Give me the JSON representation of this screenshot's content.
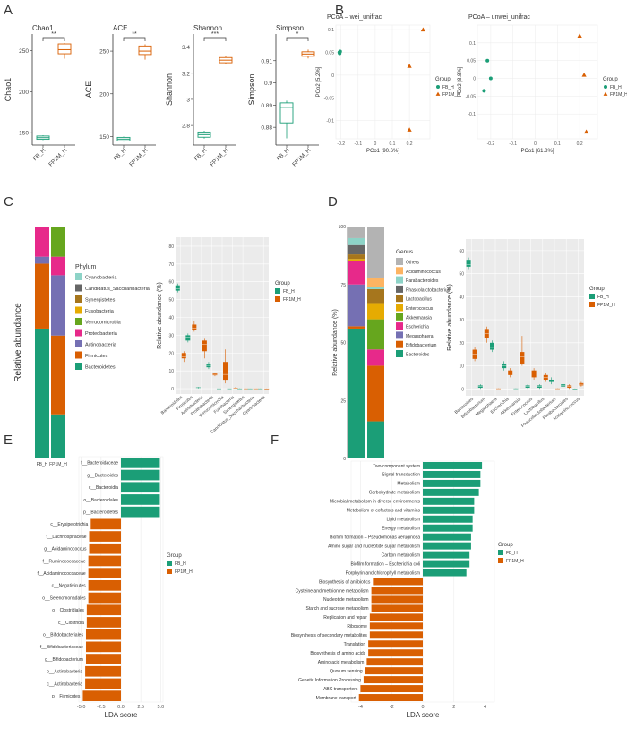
{
  "colors": {
    "fb": "#1b9e77",
    "fp": "#d95f02",
    "grid": "#ebebeb",
    "panel": "#ebebeb",
    "axis": "#333333"
  },
  "panels": {
    "A": "A",
    "B": "B",
    "C": "C",
    "D": "D",
    "E": "E",
    "F": "F"
  },
  "groups": {
    "legend_title": "Group",
    "fb": "FB_H",
    "fp": "FP1M_H"
  },
  "chart_data": [
    {
      "id": "A",
      "type": "box",
      "categories": [
        "FB_H",
        "FP1M_H"
      ],
      "plots": [
        {
          "title": "Chao1",
          "ylabel": "Chao1",
          "sig": "**",
          "ylim": [
            135,
            270
          ],
          "ticks": [
            150,
            200,
            250
          ],
          "boxes": [
            {
              "min": 141,
              "q1": 142,
              "med": 144,
              "q3": 146,
              "max": 147
            },
            {
              "min": 240,
              "q1": 246,
              "med": 251,
              "q3": 258,
              "max": 259
            }
          ]
        },
        {
          "title": "ACE",
          "ylabel": "ACE",
          "sig": "**",
          "ylim": [
            140,
            270
          ],
          "ticks": [
            150,
            200,
            250
          ],
          "boxes": [
            {
              "min": 144,
              "q1": 145,
              "med": 147,
              "q3": 149,
              "max": 150
            },
            {
              "min": 240,
              "q1": 246,
              "med": 250,
              "q3": 256,
              "max": 258
            }
          ]
        },
        {
          "title": "Shannon",
          "ylabel": "Shannon",
          "sig": "***",
          "ylim": [
            2.65,
            3.5
          ],
          "ticks": [
            2.8,
            3.0,
            3.2,
            3.4
          ],
          "boxes": [
            {
              "min": 2.7,
              "q1": 2.71,
              "med": 2.73,
              "q3": 2.75,
              "max": 2.76
            },
            {
              "min": 3.27,
              "q1": 3.28,
              "med": 3.3,
              "q3": 3.32,
              "max": 3.33
            }
          ]
        },
        {
          "title": "Simpson",
          "ylabel": "Simpson",
          "sig": "*",
          "ylim": [
            0.872,
            0.922
          ],
          "ticks": [
            0.88,
            0.89,
            0.9,
            0.91
          ],
          "boxes": [
            {
              "min": 0.875,
              "q1": 0.882,
              "med": 0.889,
              "q3": 0.891,
              "max": 0.892
            },
            {
              "min": 0.911,
              "q1": 0.912,
              "med": 0.913,
              "q3": 0.914,
              "max": 0.915
            }
          ]
        }
      ]
    },
    {
      "id": "B",
      "type": "scatter",
      "plots": [
        {
          "title": "PCoA – wei_unifrac",
          "xlabel": "PCo1 [90.6%]",
          "ylabel": "PCo2 [5.2%]",
          "xlim": [
            -0.23,
            0.32
          ],
          "ylim": [
            -0.14,
            0.11
          ],
          "xticks": [
            -0.2,
            -0.1,
            0.0,
            0.1,
            0.2
          ],
          "xtick_labels": [
            "-0.2",
            "-0.1",
            "0",
            "0.1",
            "0.2"
          ],
          "yticks": [
            -0.1,
            -0.05,
            0.0,
            0.05,
            0.1
          ],
          "ytick_labels": [
            "-0.1",
            "-0.05",
            "0",
            "0.05",
            "0.1"
          ],
          "fb": [
            [
              -0.21,
              0.05
            ],
            [
              -0.205,
              0.052
            ],
            [
              -0.208,
              0.048
            ]
          ],
          "fp": [
            [
              0.28,
              0.1
            ],
            [
              0.2,
              0.02
            ],
            [
              0.2,
              -0.12
            ]
          ]
        },
        {
          "title": "PCoA – unwei_unifrac",
          "xlabel": "PCo1 [61.8%]",
          "ylabel": "PCo2 [8.8%]",
          "xlim": [
            -0.26,
            0.28
          ],
          "ylim": [
            -0.17,
            0.15
          ],
          "xticks": [
            -0.2,
            -0.1,
            0.0,
            0.1,
            0.2
          ],
          "xtick_labels": [
            "-0.2",
            "-0.1",
            "0",
            "0.1",
            "0.2"
          ],
          "yticks": [
            -0.1,
            -0.05,
            0.0,
            0.05,
            0.1
          ],
          "ytick_labels": [
            "-0.1",
            "-0.05",
            "0",
            "0.05",
            "0.1"
          ],
          "fb": [
            [
              -0.215,
              0.05
            ],
            [
              -0.2,
              0.0
            ],
            [
              -0.23,
              -0.035
            ]
          ],
          "fp": [
            [
              0.2,
              0.12
            ],
            [
              0.22,
              0.01
            ],
            [
              0.23,
              -0.15
            ]
          ]
        }
      ]
    },
    {
      "id": "C",
      "type": "stacked_bar",
      "ylabel": "Relative abundance",
      "categories": [
        "FB_H",
        "FP1M_H"
      ],
      "legend_title": "Phylum",
      "yticks": [
        0,
        25,
        50,
        75,
        100
      ],
      "series": [
        {
          "name": "Bacteroidetes",
          "color": "#1b9e77",
          "values": [
            56,
            19
          ]
        },
        {
          "name": "Firmicutes",
          "color": "#d95f02",
          "values": [
            28,
            34
          ]
        },
        {
          "name": "Actinobacteria",
          "color": "#7570b3",
          "values": [
            3,
            26
          ]
        },
        {
          "name": "Proteobacteria",
          "color": "#e7298a",
          "values": [
            13,
            8
          ]
        },
        {
          "name": "Verrucomicrobia",
          "color": "#66a61e",
          "values": [
            0,
            13
          ]
        },
        {
          "name": "Fusobacteria",
          "color": "#e6ab02",
          "values": [
            0,
            0
          ]
        },
        {
          "name": "Synergistetes",
          "color": "#a6761d",
          "values": [
            0,
            0
          ]
        },
        {
          "name": "Candidatus_Saccharibacteria",
          "color": "#666666",
          "values": [
            0,
            0
          ]
        },
        {
          "name": "Cyanobacteria",
          "color": "#8dd3c7",
          "values": [
            0,
            0
          ]
        }
      ],
      "box": {
        "ylabel": "Relative abundance (%)",
        "ylim": [
          -3,
          85
        ],
        "yticks": [
          0,
          10,
          20,
          30,
          40,
          50,
          60,
          70,
          80
        ],
        "taxa": [
          "Bacteroidetes",
          "Firmicutes",
          "Actinobacteria",
          "Proteobacteria",
          "Verrucomicrobia",
          "Fusobacteria",
          "Synergistetes",
          "Candidatus_Saccharibacteria",
          "Cyanobacteria"
        ],
        "fb": [
          [
            54,
            55,
            56,
            58,
            59
          ],
          [
            26,
            27,
            29,
            30,
            31
          ],
          [
            0,
            0.3,
            0.5,
            0.8,
            1
          ],
          [
            11,
            12,
            13,
            14,
            15
          ],
          [
            0,
            0,
            0.1,
            0.2,
            0.3
          ],
          [
            0,
            0,
            0.1,
            0.2,
            0.3
          ],
          [
            0,
            0,
            0,
            0.1,
            0.2
          ],
          [
            0,
            0,
            0,
            0.1,
            0.1
          ],
          [
            0,
            0,
            0,
            0.1,
            0.1
          ]
        ],
        "fp": [
          [
            15,
            17,
            18,
            20,
            21
          ],
          [
            32,
            33,
            34,
            36,
            38
          ],
          [
            17,
            21,
            25,
            27,
            28
          ],
          [
            7,
            7.5,
            8,
            8.5,
            9
          ],
          [
            3,
            5,
            8,
            15,
            22
          ],
          [
            0,
            0.1,
            0.2,
            0.5,
            1
          ],
          [
            0,
            0,
            0.1,
            0.2,
            0.3
          ],
          [
            0,
            0,
            0.1,
            0.2,
            0.3
          ],
          [
            0,
            0,
            0.1,
            0.1,
            0.2
          ]
        ]
      }
    },
    {
      "id": "D",
      "type": "stacked_bar",
      "ylabel": "Relative abundance (%)",
      "categories": [
        "FB_H",
        "FP1M_H"
      ],
      "legend_title": "Genus",
      "yticks": [
        0,
        25,
        50,
        75,
        100
      ],
      "series": [
        {
          "name": "Bacteroides",
          "color": "#1b9e77",
          "values": [
            56,
            16
          ]
        },
        {
          "name": "Bifidobacterium",
          "color": "#d95f02",
          "values": [
            1,
            24
          ]
        },
        {
          "name": "Megasphaera",
          "color": "#7570b3",
          "values": [
            18,
            0
          ]
        },
        {
          "name": "Escherichia",
          "color": "#e7298a",
          "values": [
            10,
            7
          ]
        },
        {
          "name": "Akkermansia",
          "color": "#66a61e",
          "values": [
            0,
            13
          ]
        },
        {
          "name": "Enterococcus",
          "color": "#e6ab02",
          "values": [
            1,
            7
          ]
        },
        {
          "name": "Lactobacillus",
          "color": "#a6761d",
          "values": [
            2,
            6
          ]
        },
        {
          "name": "Phascolarctobacterium",
          "color": "#666666",
          "values": [
            4,
            0
          ]
        },
        {
          "name": "Parabacteroides",
          "color": "#8dd3c7",
          "values": [
            3,
            1
          ]
        },
        {
          "name": "Acidaminococcus",
          "color": "#fdb462",
          "values": [
            0,
            4
          ]
        },
        {
          "name": "Others",
          "color": "#b3b3b3",
          "values": [
            5,
            22
          ]
        }
      ],
      "box": {
        "ylabel": "Relative abundance (%)",
        "ylim": [
          -3,
          65
        ],
        "yticks": [
          0,
          10,
          20,
          30,
          40,
          50,
          60
        ],
        "taxa": [
          "Bacteroides",
          "Bifidobacterium",
          "Megasphaera",
          "Escherichia",
          "Akkermansia",
          "Enterococcus",
          "Lactobacillus",
          "Phascolarctobacterium",
          "Parabacteroides",
          "Acidaminococcus"
        ],
        "fb": [
          [
            52,
            53,
            54,
            56,
            57
          ],
          [
            0,
            0.5,
            1,
            1.5,
            2
          ],
          [
            16,
            17,
            18,
            20,
            21
          ],
          [
            8,
            9,
            10,
            11,
            12
          ],
          [
            0,
            0,
            0.1,
            0.2,
            0.3
          ],
          [
            0,
            0.5,
            1,
            1.5,
            2
          ],
          [
            0,
            0.5,
            1,
            1.5,
            2
          ],
          [
            2,
            3,
            3.5,
            4,
            5
          ],
          [
            0.5,
            1,
            1.5,
            2,
            2.5
          ],
          [
            0,
            0,
            0.1,
            0.1,
            0.2
          ]
        ],
        "fp": [
          [
            12,
            13,
            15,
            17,
            18
          ],
          [
            20,
            22,
            24,
            26,
            27
          ],
          [
            0,
            0,
            0.1,
            0.2,
            0.3
          ],
          [
            5,
            6,
            7,
            8,
            9
          ],
          [
            10,
            11,
            14,
            16,
            23
          ],
          [
            4,
            5,
            7,
            8,
            9
          ],
          [
            3,
            4,
            5,
            6,
            7
          ],
          [
            0,
            0,
            0.1,
            0.2,
            0.3
          ],
          [
            0,
            0.5,
            1,
            1.5,
            2
          ],
          [
            1,
            1.5,
            2,
            2.5,
            3
          ]
        ]
      }
    },
    {
      "id": "E",
      "type": "bar",
      "orientation": "horizontal",
      "xlabel": "LDA score",
      "xlim": [
        -5.3,
        5.3
      ],
      "xticks": [
        -5.0,
        -2.5,
        0.0,
        2.5,
        5.0
      ],
      "xtick_labels": [
        "-5.0",
        "-2.5",
        "0.0",
        "2.5",
        "5.0"
      ],
      "categories": [
        "f__Bacteroidaceae",
        "g__Bacteroides",
        "c__Bacteroidia",
        "o__Bacteroidales",
        "p__Bacteroidetes",
        "c__Erysipelotrichia",
        "f__Lachnospiraceae",
        "g__Acidaminococcus",
        "f__Ruminococcaceae",
        "f__Acidaminococcaceae",
        "c__Negativicutes",
        "o__Selenomonadales",
        "o__Clostridiales",
        "c__Clostridia",
        "o__Bifidobacteriales",
        "f__Bifidobacteriaceae",
        "g__Bifidobacterium",
        "p__Actinobacteria",
        "c__Actinobacteria",
        "p__Firmicutes"
      ],
      "values": [
        4.9,
        4.9,
        4.9,
        4.9,
        4.9,
        -3.8,
        -4.0,
        -4.0,
        -4.1,
        -4.1,
        -4.1,
        -4.1,
        -4.3,
        -4.3,
        -4.4,
        -4.4,
        -4.4,
        -4.5,
        -4.5,
        -4.8
      ]
    },
    {
      "id": "F",
      "type": "bar",
      "orientation": "horizontal",
      "xlabel": "LDA score",
      "xlim": [
        -4.6,
        4.6
      ],
      "xticks": [
        -4,
        -2,
        0,
        2,
        4
      ],
      "xtick_labels": [
        "-4",
        "-2",
        "0",
        "2",
        "4"
      ],
      "categories": [
        "Two-component system",
        "Signal transduction",
        "Metabolism",
        "Carbohydrate metabolism",
        "Microbial metabolism in diverse environments",
        "Metabolism of cofactors and vitamins",
        "Lipid metabolism",
        "Energy metabolism",
        "Biofilm formation – Pseudomonas aeruginosa",
        "Amino sugar and nucleotide sugar metabolism",
        "Carbon metabolism",
        "Biofilm formation – Escherichia coli",
        "Porphyrin and chlorophyll metabolism",
        "Biosynthesis of antibiotics",
        "Cysteine and methionine metabolism",
        "Nucleotide metabolism",
        "Starch and sucrose metabolism",
        "Replication and repair",
        "Ribosome",
        "Biosynthesis of secondary metabolites",
        "Translation",
        "Biosynthesis of amino acids",
        "Amino acid metabolism",
        "Quorum sensing",
        "Genetic Information Processing",
        "ABC transporters",
        "Membrane transport"
      ],
      "values": [
        3.8,
        3.7,
        3.7,
        3.6,
        3.3,
        3.3,
        3.2,
        3.2,
        3.1,
        3.1,
        3.0,
        3.0,
        2.8,
        -3.2,
        -3.3,
        -3.3,
        -3.3,
        -3.4,
        -3.4,
        -3.4,
        -3.5,
        -3.5,
        -3.6,
        -3.7,
        -3.8,
        -4.0,
        -4.1
      ]
    }
  ]
}
